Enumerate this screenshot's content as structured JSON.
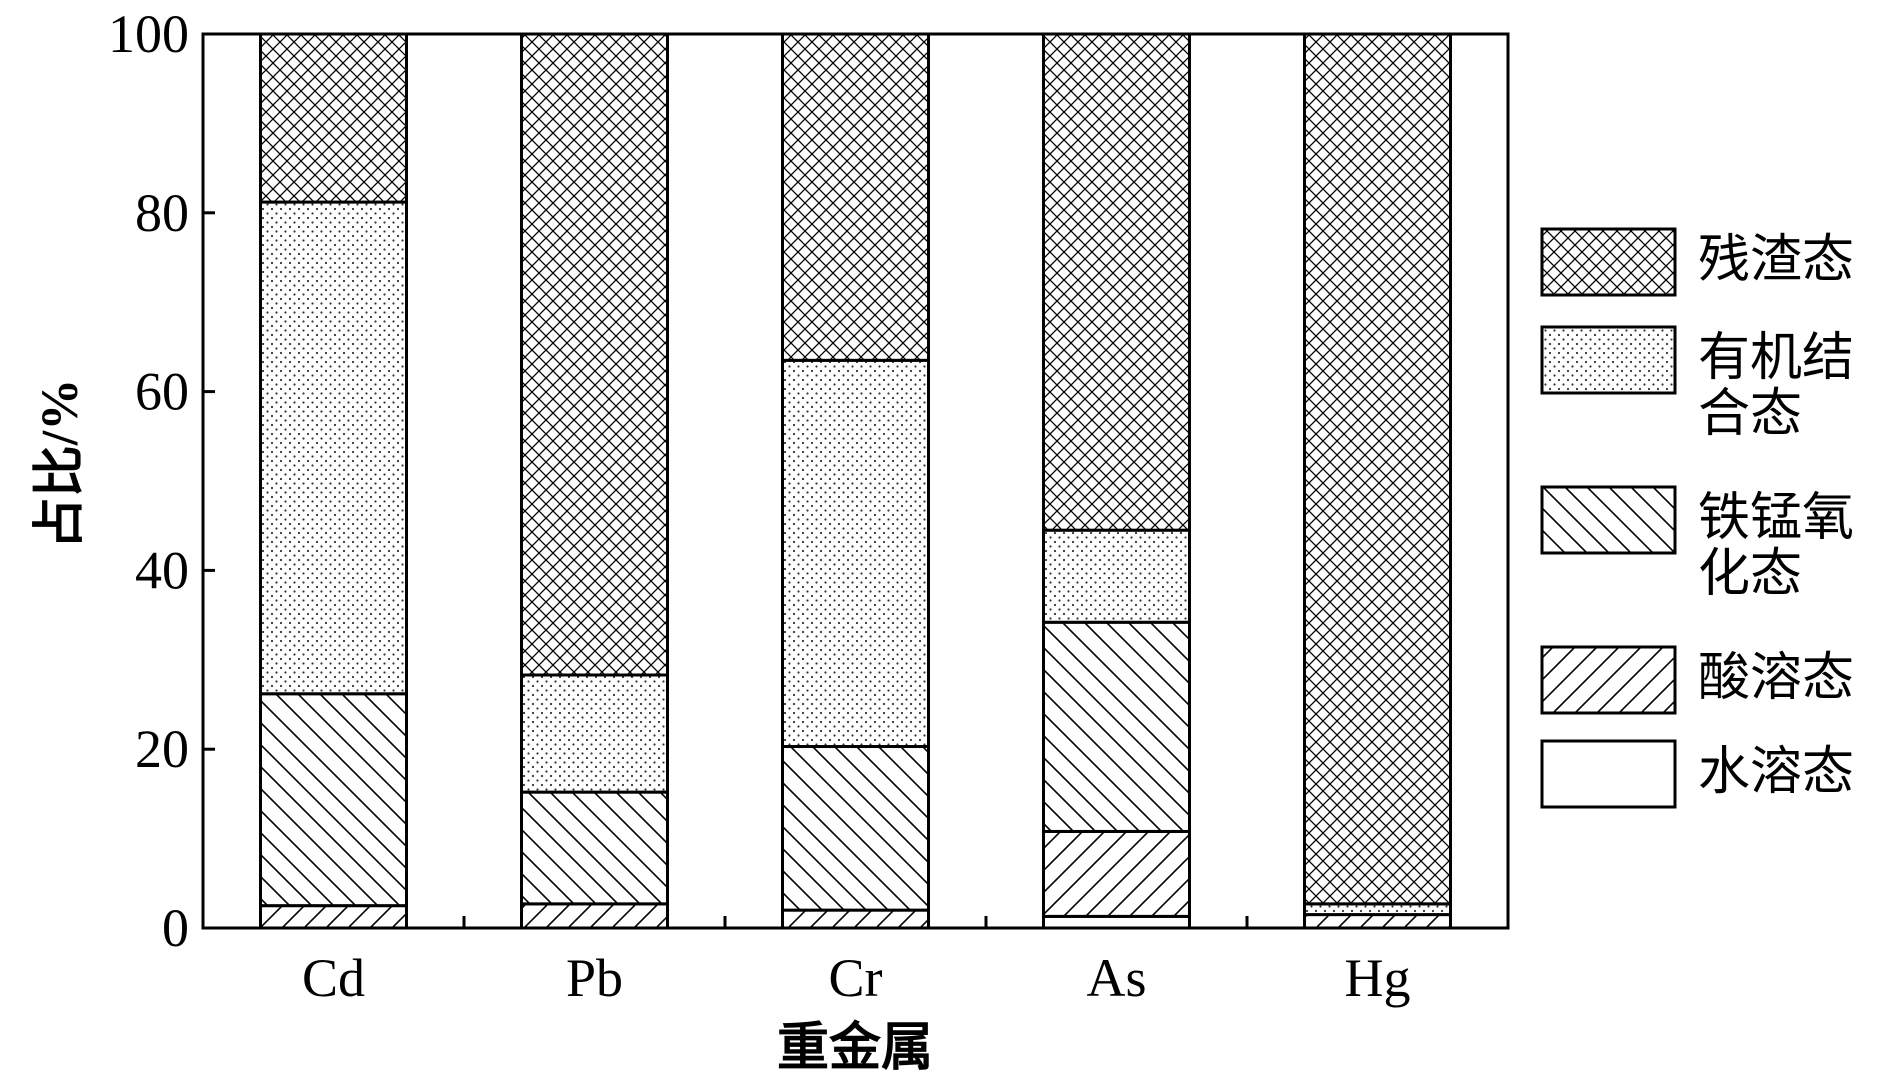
{
  "chart_data": {
    "type": "bar",
    "stacked": true,
    "categories": [
      "Cd",
      "Pb",
      "Cr",
      "As",
      "Hg"
    ],
    "xlabel": "重金属",
    "ylabel": "占比/%",
    "ylim": [
      0,
      100
    ],
    "yticks": [
      0,
      20,
      40,
      60,
      80,
      100
    ],
    "grid": false,
    "legend_position": "right",
    "series": [
      {
        "name": "水溶态",
        "pattern": "none",
        "values": [
          0,
          0,
          0,
          1.3,
          0
        ]
      },
      {
        "name": "酸溶态",
        "pattern": "forward-diagonal",
        "values": [
          2.5,
          2.7,
          2.0,
          9.5,
          1.5
        ]
      },
      {
        "name": "铁锰氧化态",
        "pattern": "backward-diagonal",
        "values": [
          23.7,
          12.5,
          18.3,
          23.4,
          0
        ]
      },
      {
        "name": "有机结合态",
        "pattern": "dots",
        "values": [
          55.0,
          13.1,
          43.2,
          10.3,
          1.2
        ]
      },
      {
        "name": "残渣态",
        "pattern": "crosshatch",
        "values": [
          18.8,
          71.7,
          36.5,
          55.5,
          97.3
        ]
      }
    ],
    "legend": {
      "order": [
        4,
        3,
        2,
        1,
        0
      ],
      "lines": [
        [
          "残渣态"
        ],
        [
          "有机结",
          "合态"
        ],
        [
          "铁锰氧",
          "化态"
        ],
        [
          "酸溶态"
        ],
        [
          "水溶态"
        ]
      ]
    }
  }
}
